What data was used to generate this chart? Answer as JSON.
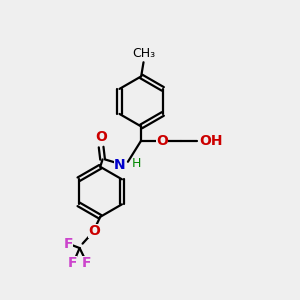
{
  "background_color": "#efefef",
  "line_color": "#000000",
  "line_width": 1.6,
  "atom_colors": {
    "O": "#cc0000",
    "N": "#0000cc",
    "F": "#cc44cc",
    "H": "#008800",
    "C": "#000000"
  },
  "font_size": 10,
  "figsize": [
    3.0,
    3.0
  ],
  "dpi": 100
}
